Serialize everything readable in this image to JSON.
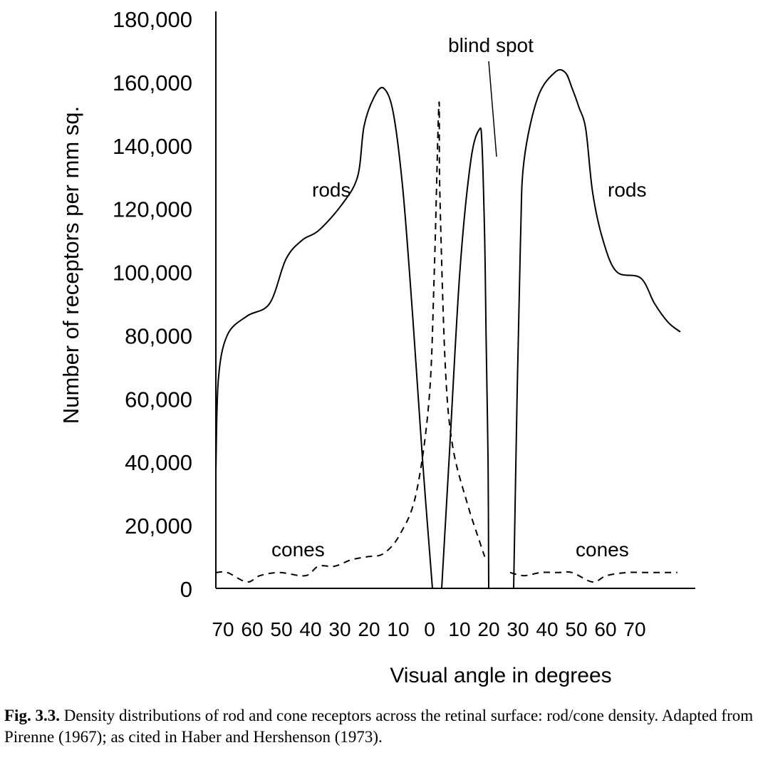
{
  "chart_data": {
    "type": "line",
    "xlabel": "Visual angle in degrees",
    "ylabel": "Number of receptors per mm sq.",
    "ylim": [
      0,
      180000
    ],
    "yticks": [
      "180,000",
      "160,000",
      "140,000",
      "120,000",
      "100,000",
      "80,000",
      "60,000",
      "40,000",
      "20,000",
      "0"
    ],
    "xticks": [
      "70",
      "60",
      "50",
      "40",
      "30",
      "20",
      "10",
      "0",
      "10",
      "20",
      "30",
      "40",
      "50",
      "60",
      "70"
    ],
    "grid": false,
    "annotations": {
      "rods_left": "rods",
      "rods_right": "rods",
      "cones_left": "cones",
      "cones_right": "cones",
      "blind_spot": "blind spot"
    },
    "series": [
      {
        "name": "rods",
        "style": "solid",
        "segments": [
          [
            [
              -72,
              37000
            ],
            [
              -71,
              66000
            ],
            [
              -68,
              80000
            ],
            [
              -62,
              86000
            ],
            [
              -55,
              90000
            ],
            [
              -50,
              104000
            ],
            [
              -45,
              110000
            ],
            [
              -40,
              113000
            ],
            [
              -33,
              121000
            ],
            [
              -28,
              130000
            ],
            [
              -26,
              146000
            ],
            [
              -23,
              155000
            ],
            [
              -20,
              158000
            ],
            [
              -17,
              150000
            ],
            [
              -14,
              125000
            ],
            [
              -11,
              85000
            ],
            [
              -8,
              40000
            ],
            [
              -5,
              0
            ]
          ],
          [
            [
              0,
              0
            ],
            [
              2,
              40000
            ],
            [
              5,
              100000
            ],
            [
              8,
              135000
            ],
            [
              11,
              145000
            ],
            [
              13,
              140000
            ],
            [
              15,
              110000
            ],
            [
              16,
              80000
            ],
            [
              17.5,
              40000
            ],
            [
              18,
              0
            ]
          ],
          [
            [
              25,
              0
            ],
            [
              26,
              60000
            ],
            [
              27,
              110000
            ],
            [
              28,
              135000
            ],
            [
              32,
              155000
            ],
            [
              37,
              163000
            ],
            [
              40,
              163000
            ],
            [
              42,
              158000
            ],
            [
              44,
              152000
            ],
            [
              46,
              145000
            ],
            [
              48,
              125000
            ],
            [
              51,
              110000
            ],
            [
              55,
              100000
            ],
            [
              62,
              98000
            ],
            [
              66,
              90000
            ],
            [
              70,
              84000
            ],
            [
              74,
              81000
            ]
          ]
        ]
      },
      {
        "name": "cones",
        "style": "dashed",
        "segments": [
          [
            [
              -72,
              5000
            ],
            [
              -68,
              5000
            ],
            [
              -62,
              2000
            ],
            [
              -58,
              4000
            ],
            [
              -52,
              5000
            ],
            [
              -44,
              4000
            ],
            [
              -40,
              7000
            ],
            [
              -35,
              7000
            ],
            [
              -30,
              9000
            ],
            [
              -25,
              10000
            ],
            [
              -20,
              11000
            ],
            [
              -15,
              17000
            ],
            [
              -10,
              30000
            ],
            [
              -6,
              60000
            ],
            [
              -4,
              100000
            ],
            [
              -1.5,
              153000
            ],
            [
              -1,
              125000
            ],
            [
              1,
              70000
            ],
            [
              3,
              45000
            ],
            [
              7,
              27000
            ],
            [
              11,
              15000
            ],
            [
              15,
              10000
            ]
          ],
          [
            [
              24,
              5000
            ],
            [
              28,
              4000
            ],
            [
              33,
              5000
            ],
            [
              38,
              5000
            ],
            [
              42,
              5000
            ],
            [
              48,
              2000
            ],
            [
              52,
              4000
            ],
            [
              58,
              5000
            ],
            [
              64,
              5000
            ],
            [
              70,
              5000
            ],
            [
              73,
              5000
            ]
          ]
        ]
      }
    ]
  },
  "caption": {
    "label": "Fig. 3.3.",
    "text": " Density distributions of rod and cone receptors across the retinal surface: rod/cone density. Adapted from Pirenne (1967); as cited in Haber and Hershenson (1973)."
  }
}
